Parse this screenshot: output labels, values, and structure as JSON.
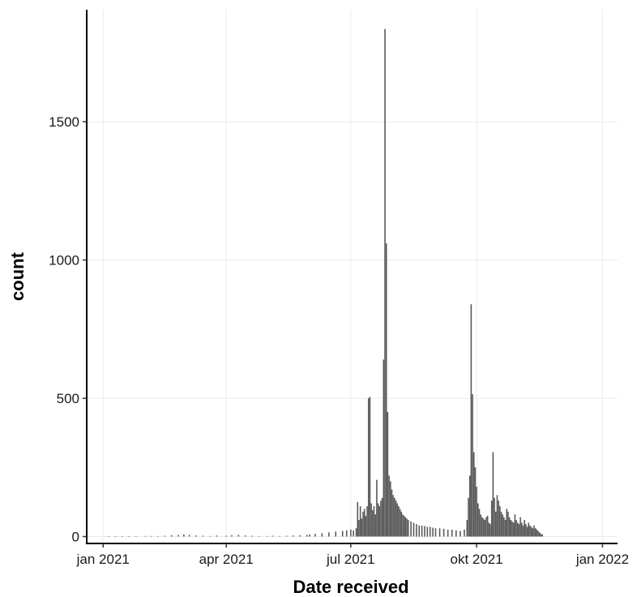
{
  "chart_data": {
    "type": "bar",
    "title": "",
    "xlabel": "Date received",
    "ylabel": "count",
    "xlim": [
      "2020-12-20",
      "2022-01-12"
    ],
    "ylim": [
      -25,
      1905
    ],
    "x_ticks": [
      {
        "date": "2021-01-01",
        "label": "jan 2021"
      },
      {
        "date": "2021-04-01",
        "label": "apr 2021"
      },
      {
        "date": "2021-07-01",
        "label": "jul 2021"
      },
      {
        "date": "2021-10-01",
        "label": "okt 2021"
      },
      {
        "date": "2022-01-01",
        "label": "jan 2022"
      }
    ],
    "y_ticks": [
      {
        "value": 0,
        "label": "0"
      },
      {
        "value": 500,
        "label": "500"
      },
      {
        "value": 1000,
        "label": "1000"
      },
      {
        "value": 1500,
        "label": "1500"
      }
    ],
    "grid": true,
    "legend": "none",
    "bar_color": "#595959",
    "series": [
      {
        "data": [
          [
            "2021-01-05",
            1
          ],
          [
            "2021-01-10",
            1
          ],
          [
            "2021-01-15",
            1
          ],
          [
            "2021-01-20",
            1
          ],
          [
            "2021-01-25",
            1
          ],
          [
            "2021-02-01",
            2
          ],
          [
            "2021-02-05",
            2
          ],
          [
            "2021-02-10",
            2
          ],
          [
            "2021-02-15",
            3
          ],
          [
            "2021-02-20",
            5
          ],
          [
            "2021-02-25",
            6
          ],
          [
            "2021-03-01",
            8
          ],
          [
            "2021-03-05",
            6
          ],
          [
            "2021-03-10",
            4
          ],
          [
            "2021-03-15",
            3
          ],
          [
            "2021-03-20",
            2
          ],
          [
            "2021-03-25",
            4
          ],
          [
            "2021-04-01",
            3
          ],
          [
            "2021-04-05",
            5
          ],
          [
            "2021-04-10",
            6
          ],
          [
            "2021-04-15",
            4
          ],
          [
            "2021-04-20",
            3
          ],
          [
            "2021-04-25",
            2
          ],
          [
            "2021-05-01",
            2
          ],
          [
            "2021-05-05",
            3
          ],
          [
            "2021-05-10",
            2
          ],
          [
            "2021-05-15",
            3
          ],
          [
            "2021-05-20",
            4
          ],
          [
            "2021-05-25",
            5
          ],
          [
            "2021-05-30",
            6
          ],
          [
            "2021-06-01",
            8
          ],
          [
            "2021-06-05",
            10
          ],
          [
            "2021-06-10",
            12
          ],
          [
            "2021-06-15",
            15
          ],
          [
            "2021-06-20",
            18
          ],
          [
            "2021-06-25",
            20
          ],
          [
            "2021-06-28",
            22
          ],
          [
            "2021-07-01",
            25
          ],
          [
            "2021-07-03",
            22
          ],
          [
            "2021-07-05",
            30
          ],
          [
            "2021-07-06",
            125
          ],
          [
            "2021-07-07",
            60
          ],
          [
            "2021-07-08",
            110
          ],
          [
            "2021-07-09",
            65
          ],
          [
            "2021-07-10",
            90
          ],
          [
            "2021-07-11",
            100
          ],
          [
            "2021-07-12",
            75
          ],
          [
            "2021-07-13",
            110
          ],
          [
            "2021-07-14",
            500
          ],
          [
            "2021-07-15",
            505
          ],
          [
            "2021-07-16",
            120
          ],
          [
            "2021-07-17",
            95
          ],
          [
            "2021-07-18",
            110
          ],
          [
            "2021-07-19",
            80
          ],
          [
            "2021-07-20",
            205
          ],
          [
            "2021-07-21",
            120
          ],
          [
            "2021-07-22",
            110
          ],
          [
            "2021-07-23",
            130
          ],
          [
            "2021-07-24",
            140
          ],
          [
            "2021-07-25",
            640
          ],
          [
            "2021-07-26",
            1835
          ],
          [
            "2021-07-27",
            1060
          ],
          [
            "2021-07-28",
            450
          ],
          [
            "2021-07-29",
            220
          ],
          [
            "2021-07-30",
            200
          ],
          [
            "2021-07-31",
            170
          ],
          [
            "2021-08-01",
            150
          ],
          [
            "2021-08-02",
            140
          ],
          [
            "2021-08-03",
            130
          ],
          [
            "2021-08-04",
            120
          ],
          [
            "2021-08-05",
            110
          ],
          [
            "2021-08-06",
            100
          ],
          [
            "2021-08-07",
            90
          ],
          [
            "2021-08-08",
            80
          ],
          [
            "2021-08-09",
            75
          ],
          [
            "2021-08-10",
            70
          ],
          [
            "2021-08-11",
            65
          ],
          [
            "2021-08-12",
            60
          ],
          [
            "2021-08-14",
            55
          ],
          [
            "2021-08-16",
            50
          ],
          [
            "2021-08-18",
            45
          ],
          [
            "2021-08-20",
            40
          ],
          [
            "2021-08-22",
            40
          ],
          [
            "2021-08-24",
            38
          ],
          [
            "2021-08-26",
            35
          ],
          [
            "2021-08-28",
            35
          ],
          [
            "2021-08-30",
            32
          ],
          [
            "2021-09-01",
            30
          ],
          [
            "2021-09-04",
            30
          ],
          [
            "2021-09-07",
            28
          ],
          [
            "2021-09-10",
            25
          ],
          [
            "2021-09-13",
            25
          ],
          [
            "2021-09-16",
            22
          ],
          [
            "2021-09-19",
            20
          ],
          [
            "2021-09-22",
            25
          ],
          [
            "2021-09-24",
            60
          ],
          [
            "2021-09-25",
            140
          ],
          [
            "2021-09-26",
            220
          ],
          [
            "2021-09-27",
            840
          ],
          [
            "2021-09-28",
            515
          ],
          [
            "2021-09-29",
            305
          ],
          [
            "2021-09-30",
            250
          ],
          [
            "2021-10-01",
            180
          ],
          [
            "2021-10-02",
            120
          ],
          [
            "2021-10-03",
            100
          ],
          [
            "2021-10-04",
            80
          ],
          [
            "2021-10-05",
            70
          ],
          [
            "2021-10-06",
            65
          ],
          [
            "2021-10-07",
            60
          ],
          [
            "2021-10-08",
            70
          ],
          [
            "2021-10-09",
            75
          ],
          [
            "2021-10-10",
            50
          ],
          [
            "2021-10-11",
            45
          ],
          [
            "2021-10-12",
            130
          ],
          [
            "2021-10-13",
            305
          ],
          [
            "2021-10-14",
            140
          ],
          [
            "2021-10-15",
            90
          ],
          [
            "2021-10-16",
            150
          ],
          [
            "2021-10-17",
            130
          ],
          [
            "2021-10-18",
            110
          ],
          [
            "2021-10-19",
            90
          ],
          [
            "2021-10-20",
            80
          ],
          [
            "2021-10-21",
            70
          ],
          [
            "2021-10-22",
            60
          ],
          [
            "2021-10-23",
            100
          ],
          [
            "2021-10-24",
            90
          ],
          [
            "2021-10-25",
            70
          ],
          [
            "2021-10-26",
            60
          ],
          [
            "2021-10-27",
            55
          ],
          [
            "2021-10-28",
            50
          ],
          [
            "2021-10-29",
            80
          ],
          [
            "2021-10-30",
            60
          ],
          [
            "2021-10-31",
            50
          ],
          [
            "2021-11-01",
            45
          ],
          [
            "2021-11-02",
            70
          ],
          [
            "2021-11-03",
            50
          ],
          [
            "2021-11-04",
            40
          ],
          [
            "2021-11-05",
            60
          ],
          [
            "2021-11-06",
            45
          ],
          [
            "2021-11-07",
            35
          ],
          [
            "2021-11-08",
            50
          ],
          [
            "2021-11-09",
            40
          ],
          [
            "2021-11-10",
            35
          ],
          [
            "2021-11-11",
            30
          ],
          [
            "2021-11-12",
            40
          ],
          [
            "2021-11-13",
            30
          ],
          [
            "2021-11-14",
            25
          ],
          [
            "2021-11-15",
            20
          ],
          [
            "2021-11-16",
            15
          ],
          [
            "2021-11-17",
            10
          ],
          [
            "2021-11-18",
            8
          ]
        ]
      }
    ]
  }
}
